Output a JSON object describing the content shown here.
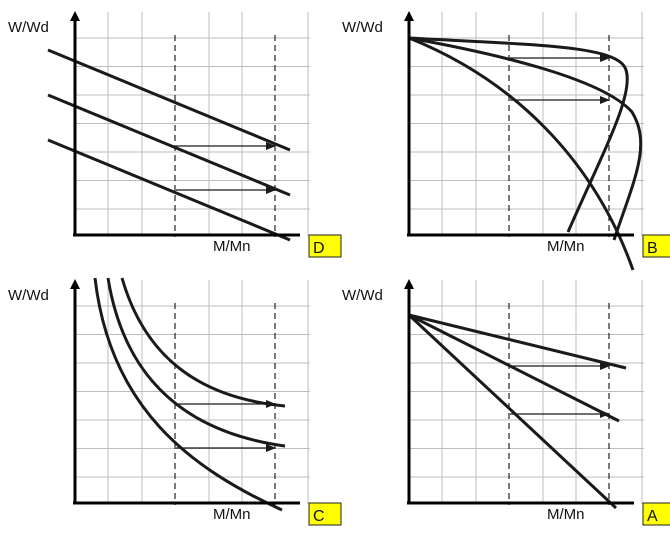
{
  "colors": {
    "grid": "#bdbdbd",
    "curve": "#1a1a1a",
    "badge_fill": "#ffff00",
    "badge_border": "#222222"
  },
  "panels": [
    {
      "id": "D",
      "y_axis_label": "W/Wd",
      "x_axis_label": "M/Mn",
      "badge": "D",
      "curve_family": "parallel-lines"
    },
    {
      "id": "B",
      "y_axis_label": "W/Wd",
      "x_axis_label": "M/Mn",
      "badge": "B",
      "curve_family": "bell-curves"
    },
    {
      "id": "C",
      "y_axis_label": "W/Wd",
      "x_axis_label": "M/Mn",
      "badge": "C",
      "curve_family": "hyperbolas"
    },
    {
      "id": "A",
      "y_axis_label": "W/Wd",
      "x_axis_label": "M/Mn",
      "badge": "A",
      "curve_family": "fan-lines"
    }
  ]
}
